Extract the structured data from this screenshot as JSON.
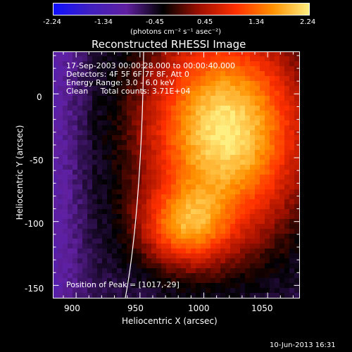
{
  "colorbar": {
    "tick_labels": [
      "-2.24",
      "-1.34",
      "-0.45",
      "0.45",
      "1.34",
      "2.24"
    ],
    "units_label": "(photons cm⁻² s⁻¹ asec⁻²)",
    "range": [
      -2.24,
      2.24
    ]
  },
  "title": "Reconstructed RHESSI Image",
  "info": {
    "time_range": "17-Sep-2003 00:00:28.000 to 00:00:40.000",
    "detectors": "Detectors: 4F 5F 6F 7F 8F, Att 0",
    "energy": "Energy Range: 3.0 - 6.0 keV",
    "clean": "Clean     Total counts: 3.71E+04"
  },
  "peak_label": "Position of Peak = [1017,-29]",
  "axes": {
    "xlabel": "Heliocentric X (arcsec)",
    "ylabel": "Heliocentric Y (arcsec)",
    "x_ticks": [
      "900",
      "950",
      "1000",
      "1050"
    ],
    "y_ticks": [
      "0",
      "-50",
      "-100",
      "-150"
    ],
    "xlim": [
      882,
      1075
    ],
    "ylim": [
      -160,
      33
    ]
  },
  "footer_date": "10-Jun-2013 16:31",
  "image_data": {
    "peak_x": 1017,
    "peak_y": -29,
    "colormap": [
      "#1010ff",
      "#4020c0",
      "#6020a0",
      "#000000",
      "#a01000",
      "#ff3000",
      "#ff9000",
      "#ffee80"
    ]
  }
}
